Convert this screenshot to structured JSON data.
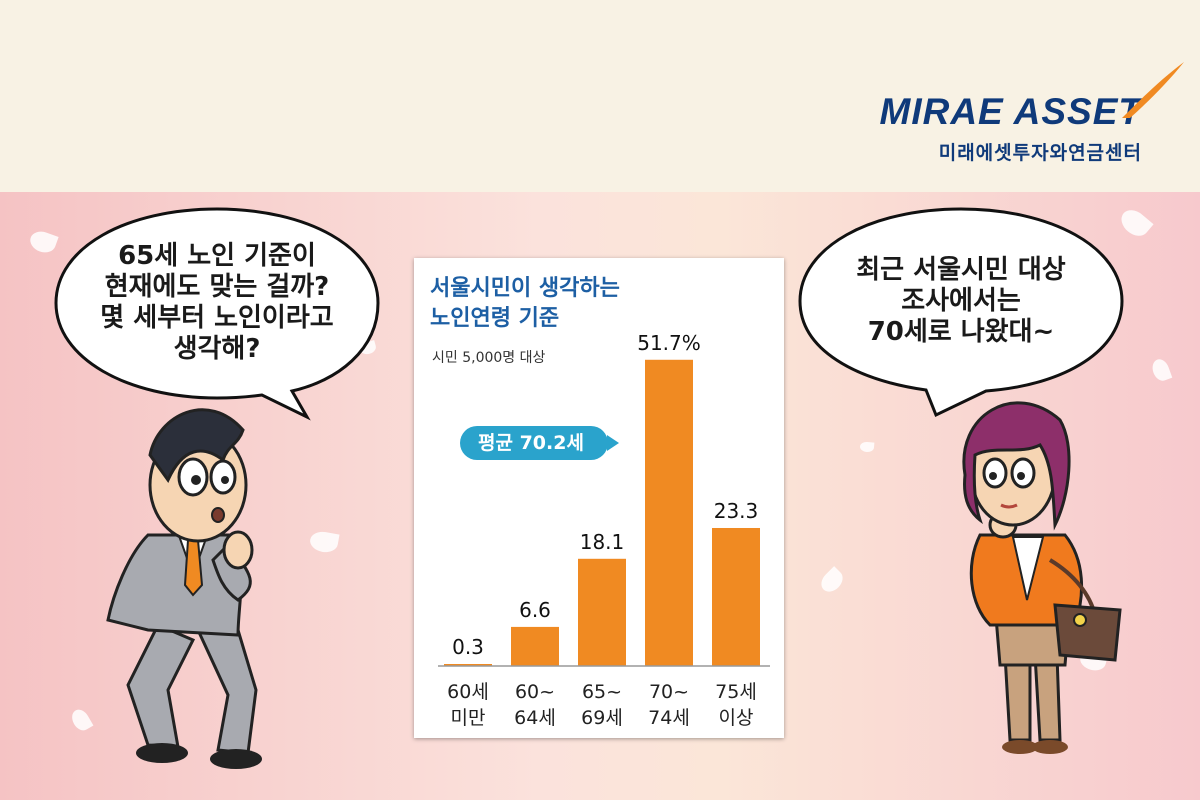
{
  "brand": {
    "name": "MIRAE ASSET",
    "subtitle": "미래에셋투자와연금센터",
    "accent_color": "#0f3a7a",
    "swoosh_color": "#f08a22"
  },
  "left_bubble": {
    "lines": [
      "65세 노인 기준이",
      "현재에도 맞는 걸까?",
      "몇 세부터 노인이라고",
      "생각해?"
    ]
  },
  "right_bubble": {
    "lines": [
      "최근 서울시민 대상",
      "조사에서는",
      "70세로 나왔대~"
    ]
  },
  "chart_data": {
    "type": "bar",
    "title_lines": [
      "서울시민이 생각하는",
      "노인연령 기준"
    ],
    "subtitle": "시민 5,000명 대상",
    "unit": "%",
    "categories": [
      [
        "60세",
        "미만"
      ],
      [
        "60~",
        "64세"
      ],
      [
        "65~",
        "69세"
      ],
      [
        "70~",
        "74세"
      ],
      [
        "75세",
        "이상"
      ]
    ],
    "values": [
      0.3,
      6.6,
      18.1,
      51.7,
      23.3
    ],
    "value_labels": [
      "0.3",
      "6.6",
      "18.1",
      "51.7%",
      "23.3"
    ],
    "average_label": "평균 70.2세",
    "bar_color": "#f08a22",
    "badge_color": "#2aa3cc",
    "ylim": [
      0,
      52
    ],
    "grid": false
  },
  "characters": {
    "left": "businessman-character",
    "right": "woman-character"
  }
}
